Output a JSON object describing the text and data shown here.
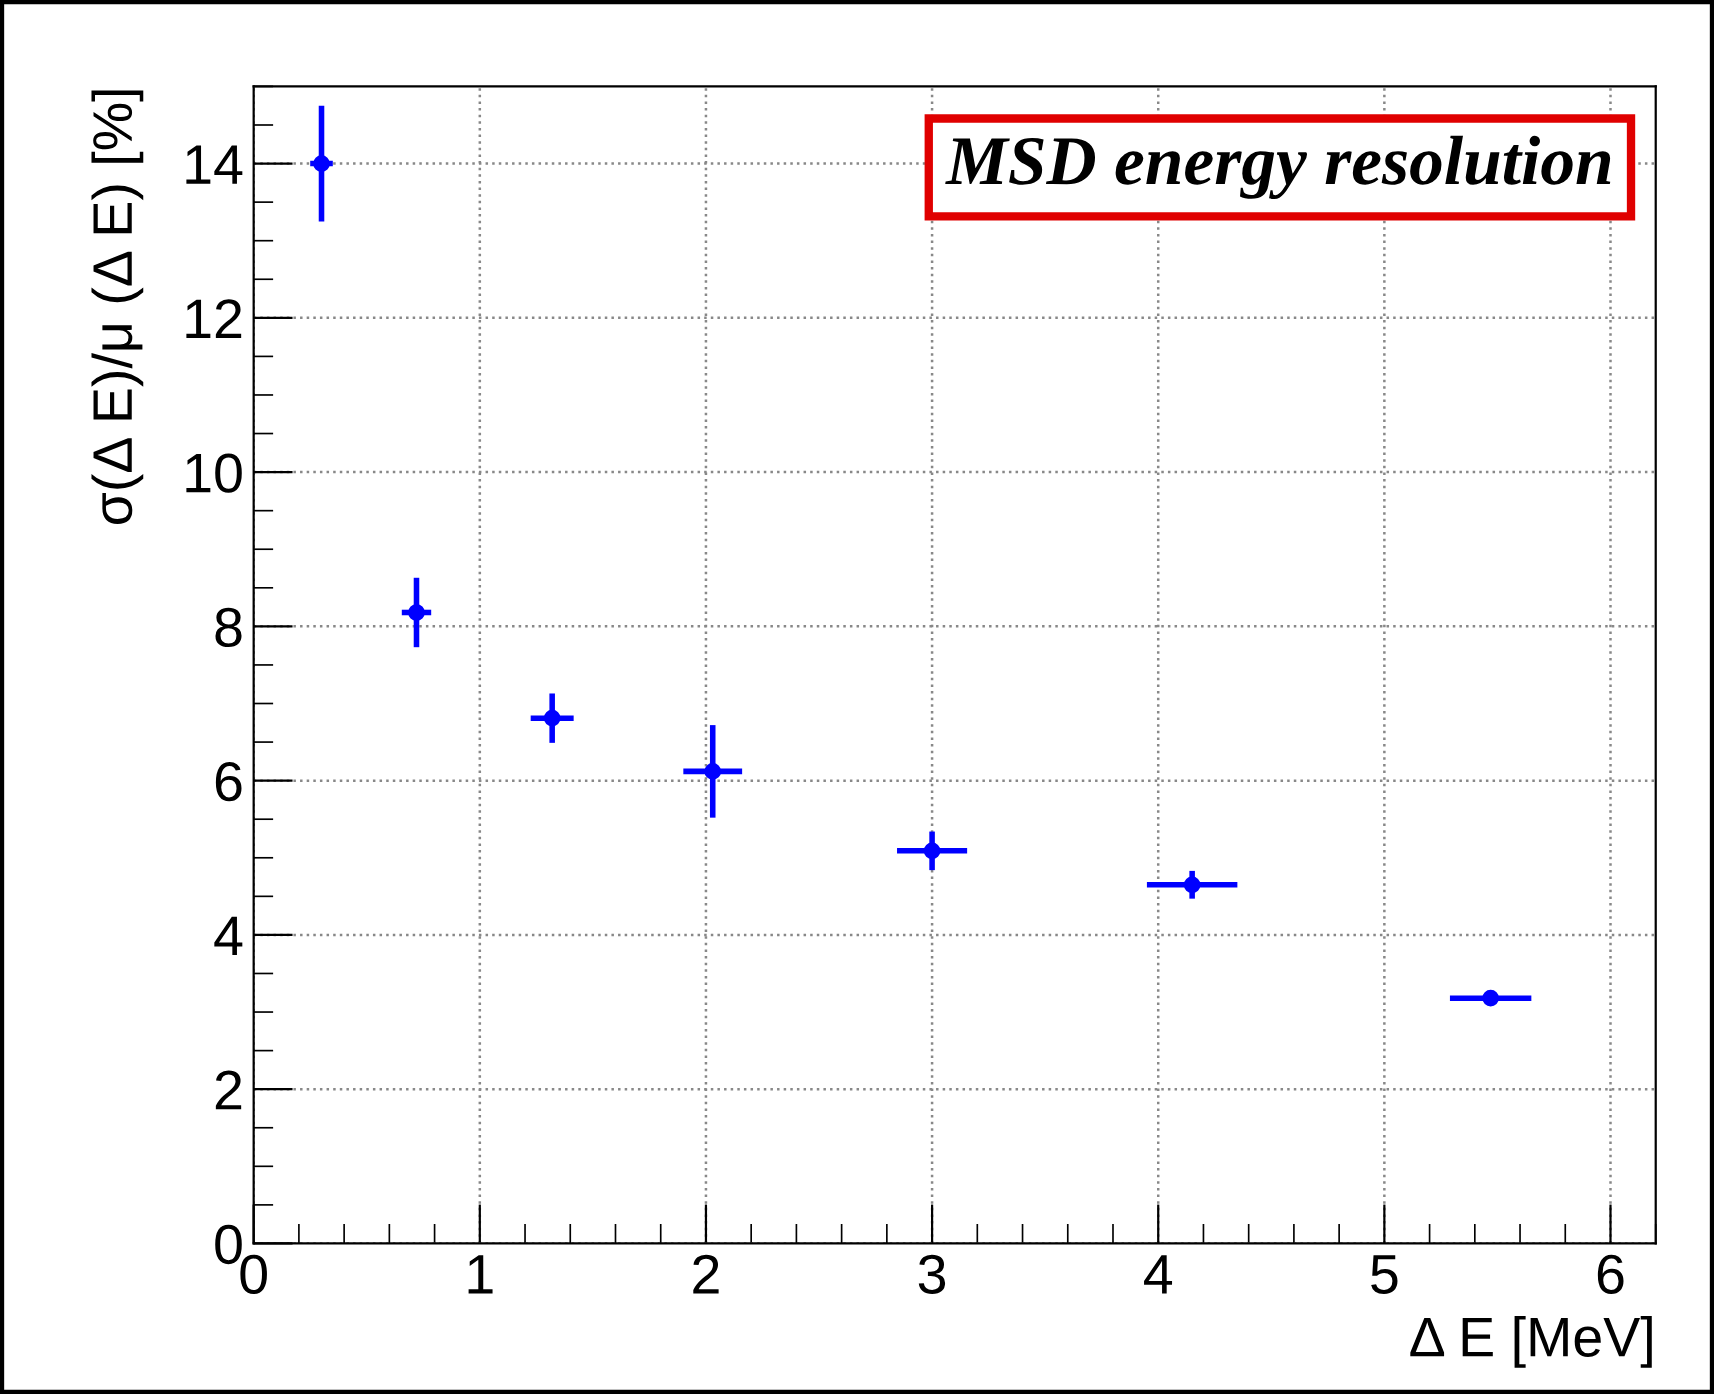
{
  "chart_data": {
    "type": "scatter",
    "title": "MSD energy resolution",
    "xlabel": "Δ E [MeV]",
    "ylabel": "σ(Δ E)/μ (Δ E) [%]",
    "x": [
      0.3,
      0.72,
      1.32,
      2.03,
      3.0,
      4.15,
      5.47
    ],
    "series": [
      {
        "color": "#0000ff",
        "values": [
          14.0,
          8.18,
          6.81,
          6.12,
          5.09,
          4.65,
          3.18
        ],
        "errors": [
          0.75,
          0.45,
          0.32,
          0.6,
          0.25,
          0.18,
          0.04
        ],
        "xerrors": [
          0.05,
          0.065,
          0.095,
          0.13,
          0.155,
          0.2,
          0.18
        ]
      }
    ],
    "xlim": [
      0,
      6.2
    ],
    "ylim": [
      0,
      15
    ],
    "xticks": [
      0,
      1,
      2,
      3,
      4,
      5,
      6
    ],
    "yticks": [
      0,
      2,
      4,
      6,
      8,
      10,
      12,
      14
    ],
    "grid": true,
    "marker": "circle"
  }
}
